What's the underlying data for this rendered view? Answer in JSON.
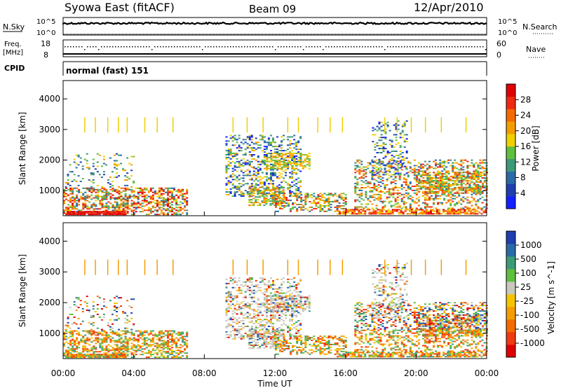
{
  "header": {
    "station": "Syowa East (fitACF)",
    "beam": "Beam 09",
    "date": "12/Apr/2010"
  },
  "status_panels": {
    "nsky_label": "N.Sky",
    "nsearch_label": "N.Search",
    "nsky_ticks": [
      "10^5",
      "10^0"
    ],
    "nsearch_ticks": [
      "10^5",
      "10^0"
    ],
    "freq_label_1": "Freq.",
    "freq_label_2": "[MHz]",
    "freq_ticks": [
      "18",
      "8"
    ],
    "nave_label": "Nave",
    "nave_ticks": [
      "60",
      "0"
    ],
    "cpid_label": "CPID",
    "cpid_text": "normal (fast) 151"
  },
  "colors": {
    "power": [
      "#1420ff",
      "#1f3fb0",
      "#2b6aa8",
      "#3d9a78",
      "#5fbf3f",
      "#f0d000",
      "#f59d00",
      "#f56b00",
      "#f02a10",
      "#e00000"
    ],
    "velocity": [
      "#e00000",
      "#f03a10",
      "#f56b00",
      "#f59d00",
      "#f5c400",
      "#c8c8be",
      "#5fbf3f",
      "#3d9a78",
      "#2b6aa8",
      "#1f3fb0"
    ],
    "ground": "#c8c8be"
  },
  "chart_data": [
    {
      "type": "heatmap",
      "name": "power",
      "ylabel": "Slant Range [km]",
      "ylim": [
        180,
        4600
      ],
      "yticks": [
        "4000",
        "3000",
        "2000",
        "1000"
      ],
      "colorbar_label": "Power [dB]",
      "colorbar_ticks": [
        "28",
        "24",
        "20",
        "16",
        "12",
        "8",
        "4"
      ],
      "colorbar_range": [
        0,
        32
      ]
    },
    {
      "type": "heatmap",
      "name": "velocity",
      "xlabel": "Time UT",
      "ylabel": "Slant Range [km]",
      "ylim": [
        180,
        4600
      ],
      "yticks": [
        "4000",
        "3000",
        "2000",
        "1000"
      ],
      "xticks": [
        "00:00",
        "04:00",
        "08:00",
        "12:00",
        "16:00",
        "20:00",
        "00:00"
      ],
      "xlim_hours": [
        0,
        24
      ],
      "colorbar_label": "Velocity [m s^-1]",
      "colorbar_ticks": [
        "1000",
        "500",
        "100",
        "25",
        "-25",
        "-100",
        "-500",
        "-1000"
      ]
    }
  ]
}
